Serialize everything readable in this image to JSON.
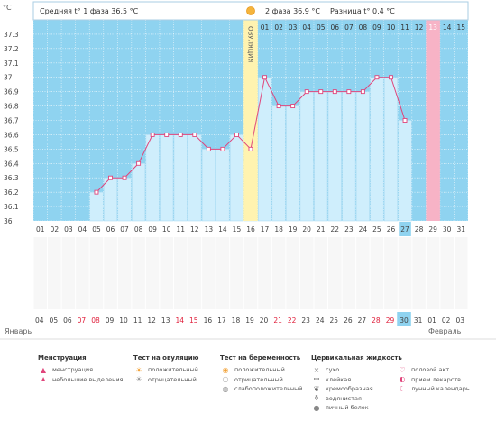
{
  "unit": "°C",
  "phase1_text": "Средняя t° 1 фаза 36.5 °C",
  "phase2_text": "2 фаза 36.9 °C",
  "diff_text": "Разница t° 0.4 °C",
  "ovulation_label": "ОВУЛЯЦИЯ",
  "chart_data": {
    "type": "line",
    "ylim": [
      36.0,
      37.4
    ],
    "yticks": [
      "37.3",
      "37.2",
      "37.1",
      "37",
      "36.9",
      "36.8",
      "36.7",
      "36.6",
      "36.5",
      "36.4",
      "36.3",
      "36.2",
      "36.1",
      "36"
    ],
    "x": [
      "01",
      "02",
      "03",
      "04",
      "05",
      "06",
      "07",
      "08",
      "09",
      "10",
      "11",
      "12",
      "13",
      "14",
      "15",
      "16",
      "17",
      "18",
      "19",
      "20",
      "21",
      "22",
      "23",
      "24",
      "25",
      "26",
      "27",
      "28",
      "29",
      "30",
      "31"
    ],
    "values": [
      null,
      null,
      null,
      null,
      36.2,
      36.3,
      36.3,
      36.4,
      36.6,
      36.6,
      36.6,
      36.6,
      36.5,
      36.5,
      36.6,
      36.5,
      37.0,
      36.8,
      36.8,
      36.9,
      36.9,
      36.9,
      36.9,
      36.9,
      37.0,
      37.0,
      36.7,
      null,
      null,
      null,
      null
    ],
    "phase2_days": [
      "01",
      "02",
      "03",
      "04",
      "05",
      "06",
      "07",
      "08",
      "09",
      "10",
      "11",
      "12",
      "13",
      "14",
      "15"
    ],
    "phase2_highlight_day": "13",
    "highlighted_x_day": "27",
    "ovulation_day": "16"
  },
  "calendar": {
    "dates": [
      "04",
      "05",
      "06",
      "07",
      "08",
      "09",
      "10",
      "11",
      "12",
      "13",
      "14",
      "15",
      "16",
      "17",
      "18",
      "19",
      "20",
      "21",
      "22",
      "23",
      "24",
      "25",
      "26",
      "27",
      "28",
      "29",
      "30",
      "31",
      "01",
      "02",
      "03"
    ],
    "red_dates": [
      "07",
      "08",
      "14",
      "15",
      "21",
      "22",
      "28",
      "29"
    ],
    "highlight_date": "30",
    "month_left": "Январь",
    "month_right": "Февраль"
  },
  "legend": [
    {
      "title": "Менструация",
      "items": [
        {
          "icon": "drop-icon",
          "label": "менструация"
        },
        {
          "icon": "small-drop-icon",
          "label": "небольшие выделения"
        }
      ]
    },
    {
      "title": "Тест на овуляцию",
      "items": [
        {
          "icon": "sun-positive-icon",
          "label": "положительный"
        },
        {
          "icon": "sun-negative-icon",
          "label": "отрицательный"
        }
      ]
    },
    {
      "title": "Тест на беременность",
      "items": [
        {
          "icon": "circle-positive-icon",
          "label": "положительный"
        },
        {
          "icon": "circle-negative-icon",
          "label": "отрицательный"
        },
        {
          "icon": "circle-weak-icon",
          "label": "слабоположительный"
        }
      ]
    },
    {
      "title": "Цервикальная жидкость",
      "items": [
        {
          "icon": "dry-icon",
          "label": "сухо"
        },
        {
          "icon": "sticky-icon",
          "label": "клейкая"
        },
        {
          "icon": "creamy-icon",
          "label": "кремообразная"
        },
        {
          "icon": "watery-icon",
          "label": "водянистая"
        },
        {
          "icon": "egg-white-icon",
          "label": "яичный белок"
        }
      ]
    },
    {
      "title": "",
      "items": [
        {
          "icon": "heart-icon",
          "label": "половой акт"
        },
        {
          "icon": "pill-icon",
          "label": "прием лекарств"
        },
        {
          "icon": "moon-icon",
          "label": "лунный календарь"
        }
      ]
    }
  ]
}
